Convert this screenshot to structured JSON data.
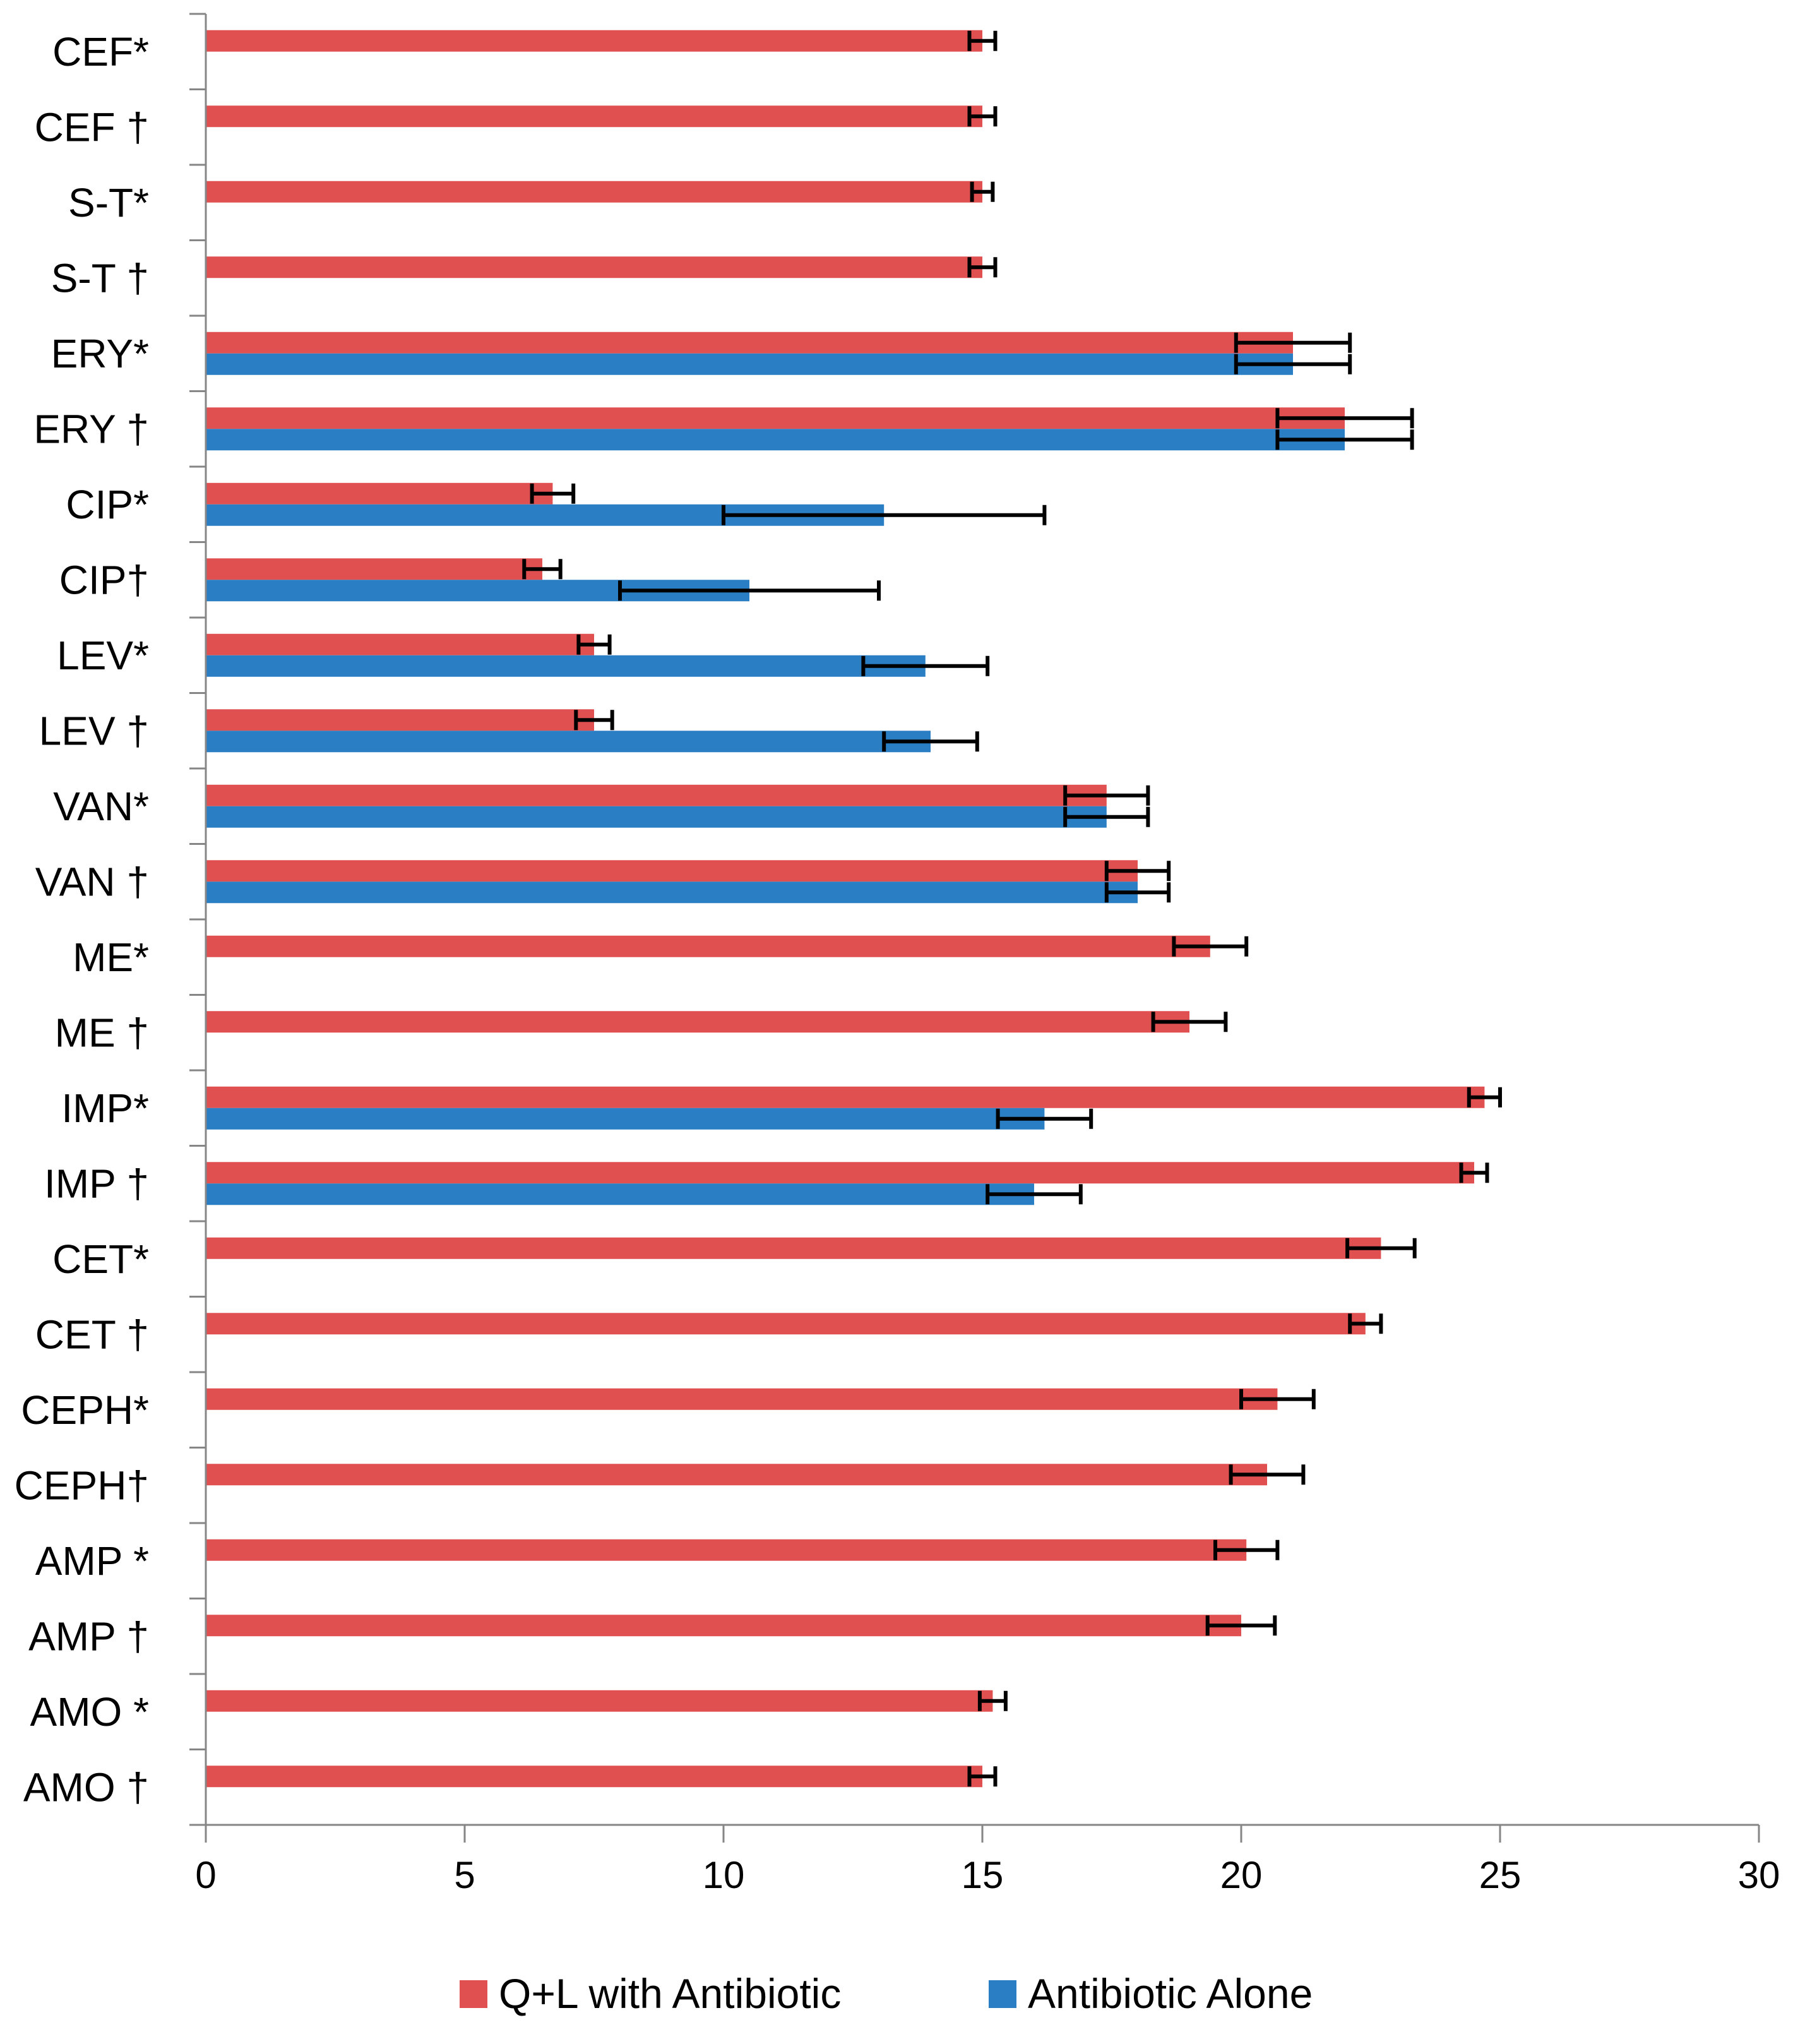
{
  "chart_data": {
    "type": "bar",
    "orientation": "horizontal",
    "title": "",
    "xlabel": "",
    "ylabel": "",
    "xlim": [
      0,
      30
    ],
    "x_ticks": [
      "0",
      "5",
      "10",
      "15",
      "20",
      "25",
      "30"
    ],
    "grid": false,
    "legend_position": "bottom",
    "categories": [
      "CEF*",
      "CEF †",
      "S-T*",
      "S-T †",
      "ERY*",
      "ERY †",
      "CIP*",
      "CIP†",
      "LEV*",
      "LEV †",
      "VAN*",
      "VAN †",
      "ME*",
      "ME †",
      "IMP*",
      "IMP †",
      "CET*",
      "CET †",
      "CEPH*",
      "CEPH†",
      "AMP *",
      "AMP †",
      "AMO *",
      "AMO †"
    ],
    "series": [
      {
        "name": "Q+L with Antibiotic",
        "color": "#e05050",
        "values": [
          15,
          15,
          15,
          15,
          21,
          22,
          6.7,
          6.5,
          7.5,
          7.5,
          17.4,
          18,
          19.4,
          19,
          24.7,
          24.5,
          22.7,
          22.4,
          20.7,
          20.5,
          20.1,
          20,
          15.2,
          15
        ],
        "errors": [
          0.25,
          0.25,
          0.2,
          0.25,
          1.1,
          1.3,
          0.4,
          0.35,
          0.3,
          0.35,
          0.8,
          0.6,
          0.7,
          0.7,
          0.3,
          0.25,
          0.65,
          0.3,
          0.7,
          0.7,
          0.6,
          0.65,
          0.25,
          0.25
        ]
      },
      {
        "name": "Antibiotic Alone",
        "color": "#2a7fc4",
        "values": [
          null,
          null,
          null,
          null,
          21,
          22,
          13.1,
          10.5,
          13.9,
          14,
          17.4,
          18,
          null,
          null,
          16.2,
          16,
          null,
          null,
          null,
          null,
          null,
          null,
          null,
          null
        ],
        "errors": [
          null,
          null,
          null,
          null,
          1.1,
          1.3,
          3.1,
          2.5,
          1.2,
          0.9,
          0.8,
          0.6,
          null,
          null,
          0.9,
          0.9,
          null,
          null,
          null,
          null,
          null,
          null,
          null,
          null
        ]
      }
    ]
  }
}
